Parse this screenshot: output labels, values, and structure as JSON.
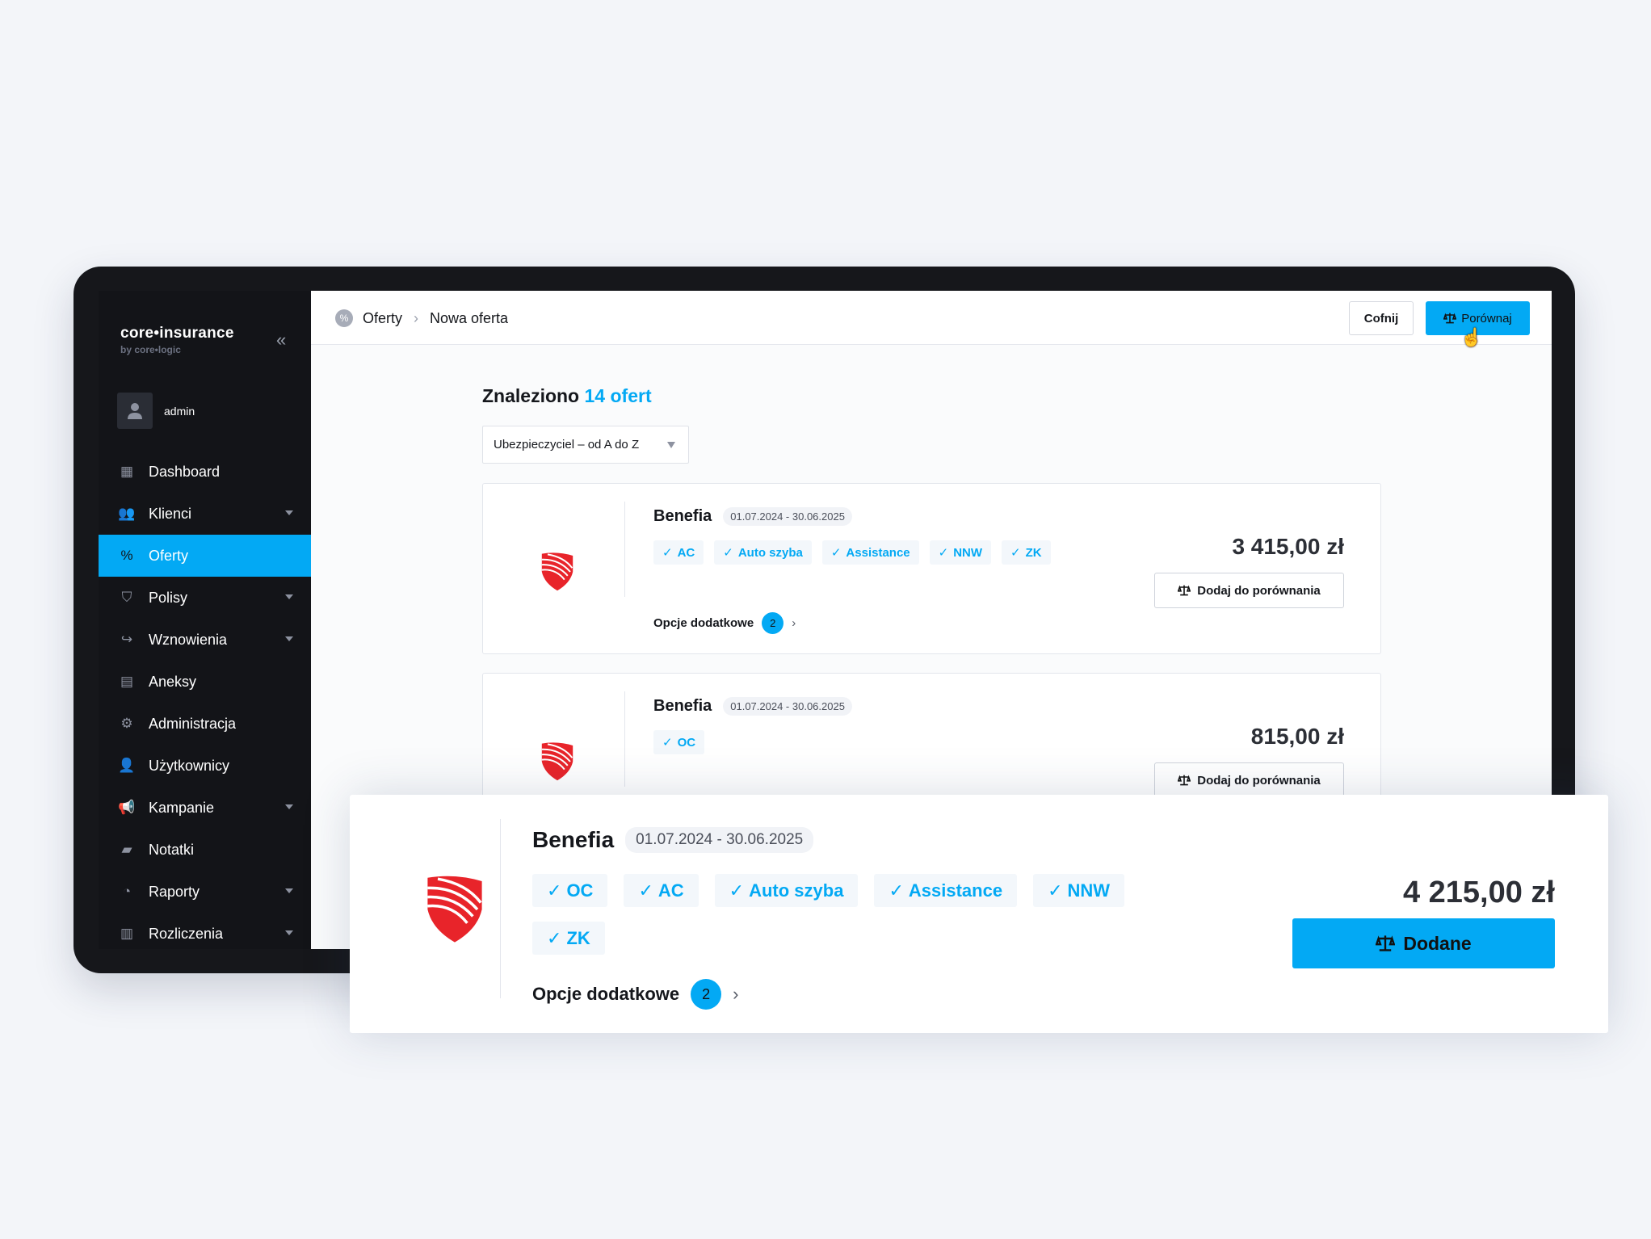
{
  "brand": {
    "name": "core•insurance",
    "sub": "by core•logic"
  },
  "user": {
    "name": "admin"
  },
  "colors": {
    "accent": "#03a9f4",
    "sidebar": "#131418",
    "logo_red": "#e8242a"
  },
  "sidebar": {
    "items": [
      {
        "label": "Dashboard",
        "icon": "dashboard-icon",
        "glyph": "▦",
        "caret": false
      },
      {
        "label": "Klienci",
        "icon": "clients-icon",
        "glyph": "👥",
        "caret": true
      },
      {
        "label": "Oferty",
        "icon": "percent-icon",
        "glyph": "%",
        "caret": false,
        "active": true
      },
      {
        "label": "Polisy",
        "icon": "shield-icon",
        "glyph": "⛉",
        "caret": true
      },
      {
        "label": "Wznowienia",
        "icon": "renew-icon",
        "glyph": "↪",
        "caret": true
      },
      {
        "label": "Aneksy",
        "icon": "annex-icon",
        "glyph": "▤",
        "caret": false
      },
      {
        "label": "Administracja",
        "icon": "admin-icon",
        "glyph": "⚙",
        "caret": false
      },
      {
        "label": "Użytkownicy",
        "icon": "users-icon",
        "glyph": "👤",
        "caret": false
      },
      {
        "label": "Kampanie",
        "icon": "megaphone-icon",
        "glyph": "📢",
        "caret": true
      },
      {
        "label": "Notatki",
        "icon": "note-icon",
        "glyph": "▰",
        "caret": false
      },
      {
        "label": "Raporty",
        "icon": "pie-chart-icon",
        "glyph": "◔",
        "caret": true
      },
      {
        "label": "Rozliczenia",
        "icon": "invoice-icon",
        "glyph": "▥",
        "caret": true
      }
    ]
  },
  "breadcrumb": [
    "Oferty",
    "Nowa oferta"
  ],
  "header": {
    "back": "Cofnij",
    "compare": "Porównaj"
  },
  "results": {
    "prefix": "Znaleziono",
    "count": "14 ofert"
  },
  "sort": {
    "value": "Ubezpieczyciel – od A do Z"
  },
  "offers": [
    {
      "insurer": "Benefia",
      "dates": "01.07.2024 - 30.06.2025",
      "tags": [
        "AC",
        "Auto szyba",
        "Assistance",
        "NNW",
        "ZK"
      ],
      "options_label": "Opcje dodatkowe",
      "options_count": "2",
      "price": "3 415,00 zł",
      "button": "Dodaj do porównania"
    },
    {
      "insurer": "Benefia",
      "dates": "01.07.2024 - 30.06.2025",
      "tags": [
        "OC"
      ],
      "options_label": "Opcje dodatkowe",
      "options_count": "2",
      "price": "815,00 zł",
      "button": "Dodaj do porównania"
    }
  ],
  "featured": {
    "insurer": "Benefia",
    "dates": "01.07.2024 - 30.06.2025",
    "tags": [
      "OC",
      "AC",
      "Auto szyba",
      "Assistance",
      "NNW",
      "ZK"
    ],
    "options_label": "Opcje dodatkowe",
    "options_count": "2",
    "price": "4 215,00 zł",
    "button": "Dodane"
  }
}
